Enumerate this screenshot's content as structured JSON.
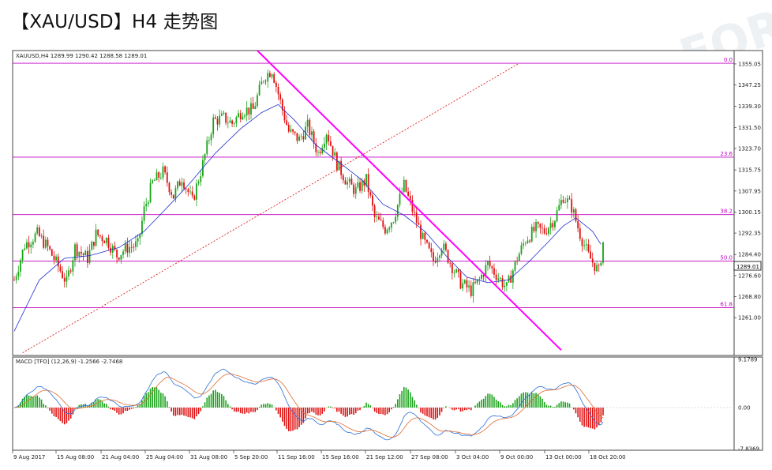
{
  "page": {
    "title": "【XAU/USD】H4 走势图",
    "watermark": "FOR"
  },
  "chart_data": [
    {
      "type": "candlestick",
      "header": "XAUUSD,H4  1289.99 1290.42 1288.58 1289.01",
      "symbol": "XAUUSD",
      "timeframe": "H4",
      "ohlc": {
        "open": 1289.99,
        "high": 1290.42,
        "low": 1288.58,
        "close": 1289.01
      },
      "current_price_label": "1289.01",
      "ylim": [
        1247,
        1360
      ],
      "y_ticks": [
        "1355.05",
        "1347.25",
        "1339.30",
        "1331.50",
        "1323.70",
        "1315.75",
        "1307.95",
        "1300.15",
        "1292.35",
        "1284.40",
        "1276.60",
        "1268.80",
        "1261.00"
      ],
      "x_ticks": [
        "9 Aug 2017",
        "15 Aug 08:00",
        "21 Aug 04:00",
        "25 Aug 04:00",
        "31 Aug 08:00",
        "5 Sep 20:00",
        "11 Sep 16:00",
        "15 Sep 16:00",
        "21 Sep 12:00",
        "27 Sep 08:00",
        "3 Oct 04:00",
        "9 Oct 00:00",
        "13 Oct 00:00",
        "18 Oct 20:00"
      ],
      "fibonacci": [
        {
          "label": "0.0",
          "price": 1355.3
        },
        {
          "label": "23.6",
          "price": 1320.5
        },
        {
          "label": "38.2",
          "price": 1299.2
        },
        {
          "label": "50.0",
          "price": 1282.0
        },
        {
          "label": "61.8",
          "price": 1264.7
        }
      ],
      "path": [
        [
          0,
          1275
        ],
        [
          5,
          1288
        ],
        [
          11,
          1292
        ],
        [
          16,
          1287
        ],
        [
          21,
          1280
        ],
        [
          25,
          1274
        ],
        [
          29,
          1287
        ],
        [
          35,
          1283
        ],
        [
          39,
          1292
        ],
        [
          44,
          1290
        ],
        [
          49,
          1284
        ],
        [
          54,
          1287
        ],
        [
          59,
          1288
        ],
        [
          62,
          1301
        ],
        [
          66,
          1311
        ],
        [
          71,
          1315
        ],
        [
          76,
          1306
        ],
        [
          80,
          1313
        ],
        [
          85,
          1304
        ],
        [
          90,
          1318
        ],
        [
          95,
          1334
        ],
        [
          100,
          1335
        ],
        [
          104,
          1333
        ],
        [
          109,
          1338
        ],
        [
          114,
          1338
        ],
        [
          119,
          1350
        ],
        [
          123,
          1353
        ],
        [
          128,
          1338
        ],
        [
          131,
          1330
        ],
        [
          136,
          1327
        ],
        [
          140,
          1332
        ],
        [
          145,
          1322
        ],
        [
          149,
          1330
        ],
        [
          154,
          1318
        ],
        [
          159,
          1311
        ],
        [
          163,
          1308
        ],
        [
          168,
          1312
        ],
        [
          172,
          1298
        ],
        [
          177,
          1294
        ],
        [
          181,
          1298
        ],
        [
          186,
          1310
        ],
        [
          190,
          1301
        ],
        [
          195,
          1290
        ],
        [
          200,
          1282
        ],
        [
          204,
          1288
        ],
        [
          209,
          1280
        ],
        [
          213,
          1274
        ],
        [
          218,
          1271
        ],
        [
          222,
          1275
        ],
        [
          226,
          1281
        ],
        [
          231,
          1276
        ],
        [
          235,
          1272
        ],
        [
          240,
          1283
        ],
        [
          244,
          1290
        ],
        [
          249,
          1294
        ],
        [
          253,
          1293
        ],
        [
          258,
          1298
        ],
        [
          262,
          1306
        ],
        [
          266,
          1302
        ],
        [
          270,
          1292
        ],
        [
          274,
          1284
        ],
        [
          279,
          1278
        ],
        [
          281,
          1289
        ]
      ],
      "x_count": 282,
      "moving_average": [
        [
          0,
          1256
        ],
        [
          12,
          1275
        ],
        [
          24,
          1283
        ],
        [
          36,
          1284
        ],
        [
          50,
          1287
        ],
        [
          62,
          1293
        ],
        [
          72,
          1301
        ],
        [
          84,
          1311
        ],
        [
          96,
          1322
        ],
        [
          108,
          1331
        ],
        [
          118,
          1337
        ],
        [
          126,
          1340
        ],
        [
          134,
          1334
        ],
        [
          144,
          1325
        ],
        [
          156,
          1318
        ],
        [
          166,
          1312
        ],
        [
          176,
          1303
        ],
        [
          186,
          1299
        ],
        [
          196,
          1293
        ],
        [
          206,
          1284
        ],
        [
          216,
          1276
        ],
        [
          226,
          1274
        ],
        [
          236,
          1275
        ],
        [
          246,
          1282
        ],
        [
          256,
          1290
        ],
        [
          262,
          1295
        ],
        [
          268,
          1298
        ],
        [
          276,
          1293
        ],
        [
          281,
          1287
        ]
      ],
      "trendlines": [
        {
          "kind": "resistance",
          "style": "solid",
          "color": "#ff00ff",
          "from": [
            116,
            1360
          ],
          "to": [
            261,
            1249
          ]
        },
        {
          "kind": "support",
          "style": "dotted",
          "color": "#e02020",
          "from": [
            4,
            1248
          ],
          "to": [
            241,
            1355.3
          ]
        }
      ]
    },
    {
      "type": "bar",
      "header": "MACD [TFO] (12,26,9) -1.2566 -2.7468",
      "params": "(12,26,9)",
      "values_label": [
        "-1.2566",
        "-2.7468"
      ],
      "y_ticks": [
        "9.1789",
        "0.00",
        "-7.8369"
      ],
      "ylim": [
        -7.8369,
        9.1789
      ]
    }
  ],
  "colors": {
    "bull": "#1aa31a",
    "bear": "#e01010",
    "fib": "#c000c0",
    "resistance": "#ff00ff",
    "ma": "#1f2fd0",
    "macd_main": "#2a6fd8",
    "macd_signal": "#e06a30"
  }
}
